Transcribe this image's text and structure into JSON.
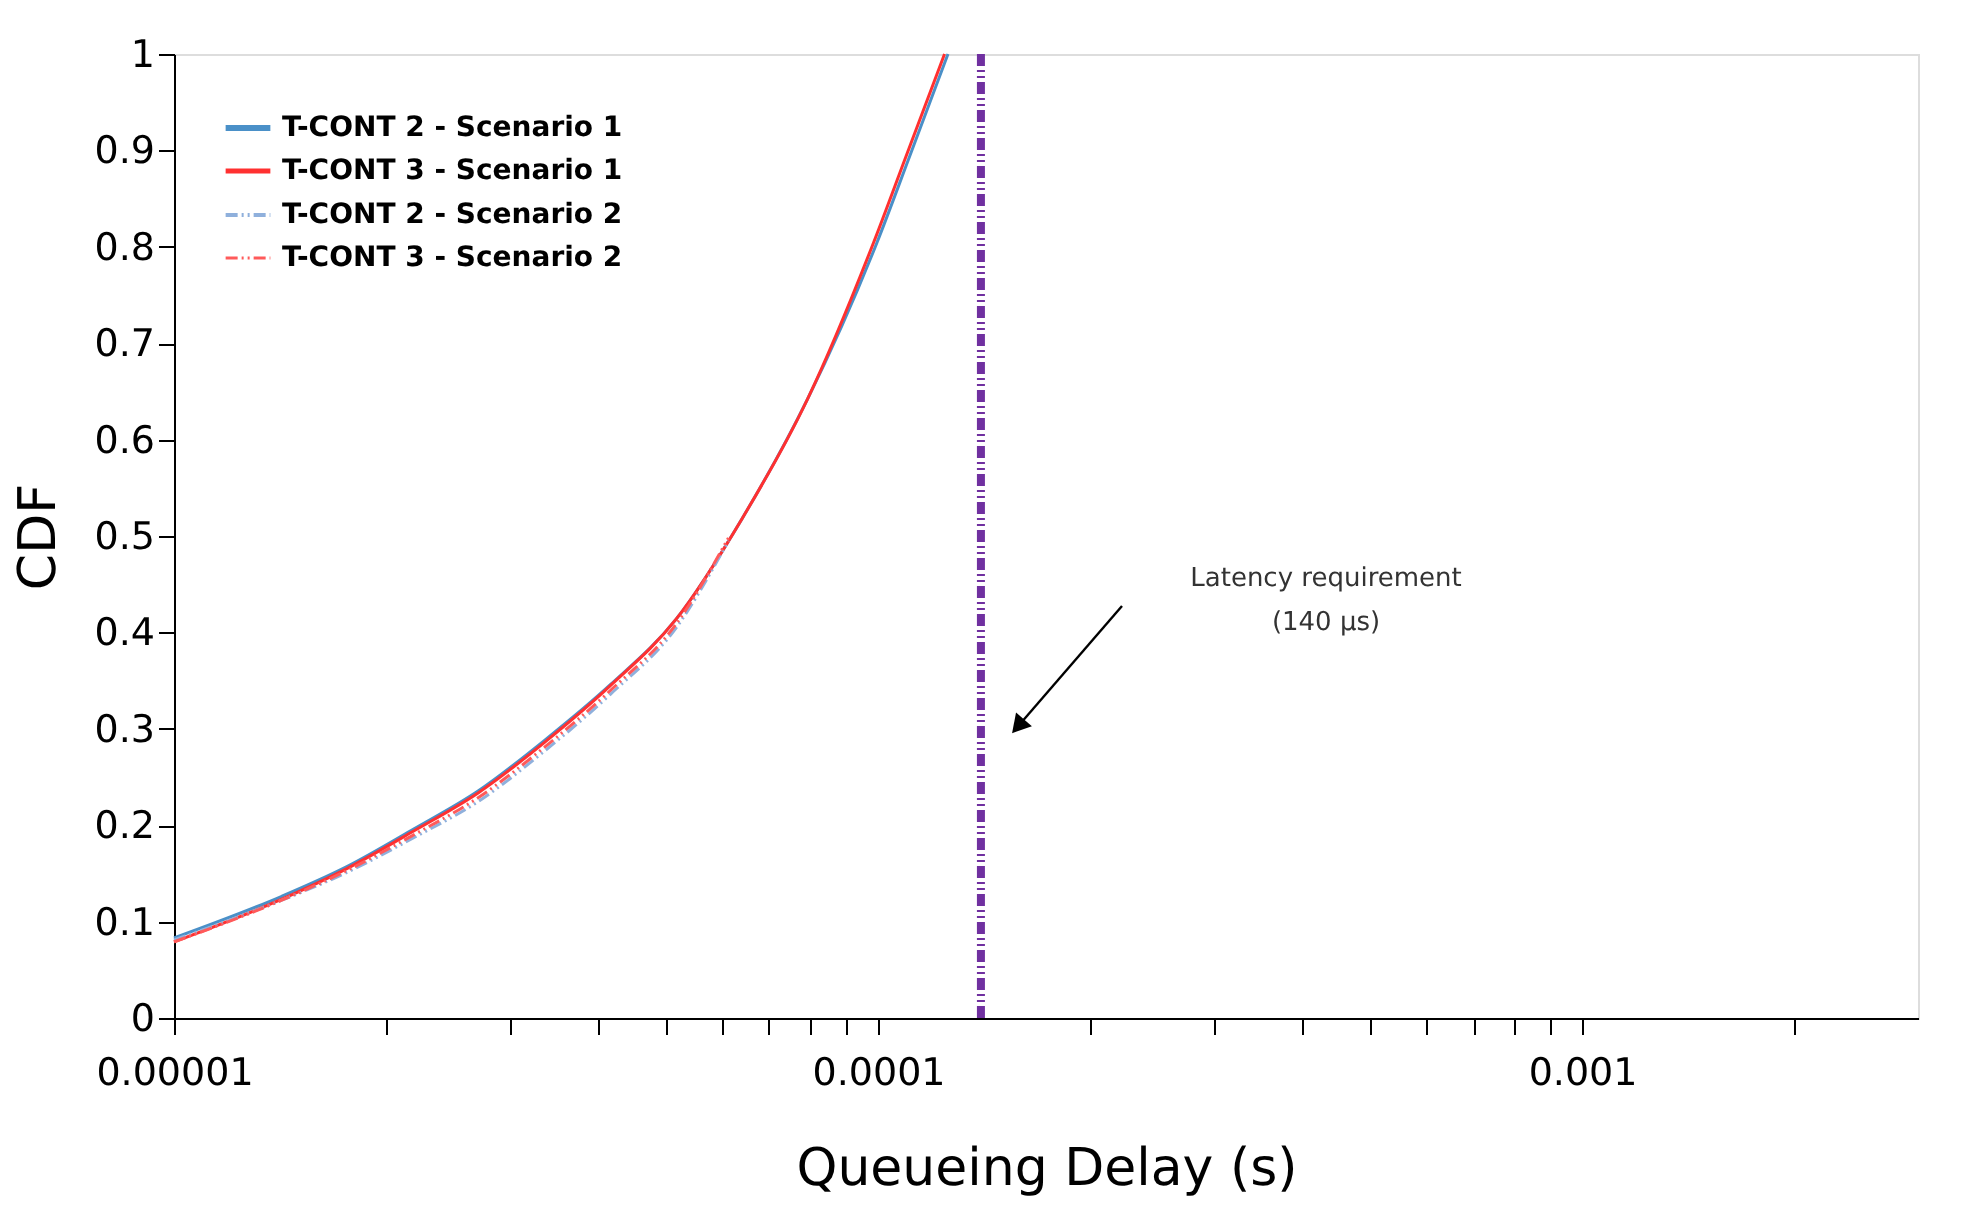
{
  "chart_data": {
    "type": "line",
    "xlabel": "Queueing Delay (s)",
    "ylabel": "CDF",
    "log": "x",
    "xlim": [
      1e-05,
      0.003
    ],
    "ylim": [
      0,
      1
    ],
    "xticks": [
      {
        "value": 1e-05,
        "label": "0.00001"
      },
      {
        "value": 2e-05,
        "label": null
      },
      {
        "value": 3e-05,
        "label": null
      },
      {
        "value": 4e-05,
        "label": null
      },
      {
        "value": 5e-05,
        "label": null
      },
      {
        "value": 6e-05,
        "label": null
      },
      {
        "value": 7e-05,
        "label": null
      },
      {
        "value": 8e-05,
        "label": null
      },
      {
        "value": 9e-05,
        "label": null
      },
      0.0001,
      {
        "value": 0.0002,
        "label": null
      },
      {
        "value": 0.0003,
        "label": null
      },
      {
        "value": 0.0004,
        "label": null
      },
      {
        "value": 0.0005,
        "label": null
      },
      {
        "value": 0.0006,
        "label": null
      },
      {
        "value": 0.0007,
        "label": null
      },
      {
        "value": 0.0008,
        "label": null
      },
      {
        "value": 0.0009,
        "label": null
      },
      0.001,
      {
        "value": 0.002,
        "label": null
      }
    ],
    "yticks": [
      0,
      0.1,
      0.2,
      0.3,
      0.4,
      0.5,
      0.6,
      0.7,
      0.8,
      0.9,
      1
    ],
    "grid": false,
    "legend": "top left",
    "series": [
      {
        "name": "T-CONT 2 - Scenario 1",
        "color": "#4a90c8",
        "line_style": "solid",
        "x": [
          1e-05,
          1.42e-05,
          1.76e-05,
          2.19e-05,
          2.71e-05,
          3.36e-05,
          4.17e-05,
          5.17e-05,
          6.41e-05,
          7.94e-05,
          9.96e-05,
          0.0001109,
          0.0001257
        ],
        "values": [
          0.083,
          0.126,
          0.157,
          0.196,
          0.236,
          0.288,
          0.346,
          0.414,
          0.518,
          0.642,
          0.804,
          0.894,
          1.0
        ]
      },
      {
        "name": "T-CONT 3 - Scenario 1",
        "color": "#ff3030",
        "line_style": "solid",
        "x": [
          1e-05,
          1.42e-05,
          1.76e-05,
          2.19e-05,
          2.71e-05,
          3.36e-05,
          4.17e-05,
          5.17e-05,
          6.41e-05,
          7.94e-05,
          9.85e-05,
          0.0001096,
          0.0001243
        ],
        "values": [
          0.079,
          0.123,
          0.155,
          0.194,
          0.234,
          0.286,
          0.345,
          0.414,
          0.518,
          0.642,
          0.804,
          0.894,
          1.0
        ]
      },
      {
        "name": "T-CONT 2 - Scenario 2",
        "color": "#8fb0dc",
        "line_style": "dashed",
        "x": [
          1e-05,
          1.42e-05,
          1.76e-05,
          2.19e-05,
          2.71e-05,
          3.36e-05,
          4.17e-05,
          5.17e-05,
          6.13e-05
        ],
        "values": [
          0.081,
          0.122,
          0.151,
          0.187,
          0.225,
          0.277,
          0.336,
          0.405,
          0.495
        ]
      },
      {
        "name": "T-CONT 3 - Scenario 2",
        "color": "#ff5a5a",
        "line_style": "dashed",
        "x": [
          1e-05,
          1.42e-05,
          1.76e-05,
          2.19e-05,
          2.71e-05,
          3.36e-05,
          4.17e-05,
          5.17e-05,
          6.13e-05
        ],
        "values": [
          0.079,
          0.122,
          0.153,
          0.19,
          0.229,
          0.281,
          0.34,
          0.409,
          0.498
        ]
      }
    ],
    "ref_lines": [
      {
        "axis": "x",
        "value": 0.00014,
        "color": "#7030a0",
        "line_style": "dashed"
      }
    ],
    "annotations": [
      "Latency requirement\n(140 µs)"
    ]
  }
}
